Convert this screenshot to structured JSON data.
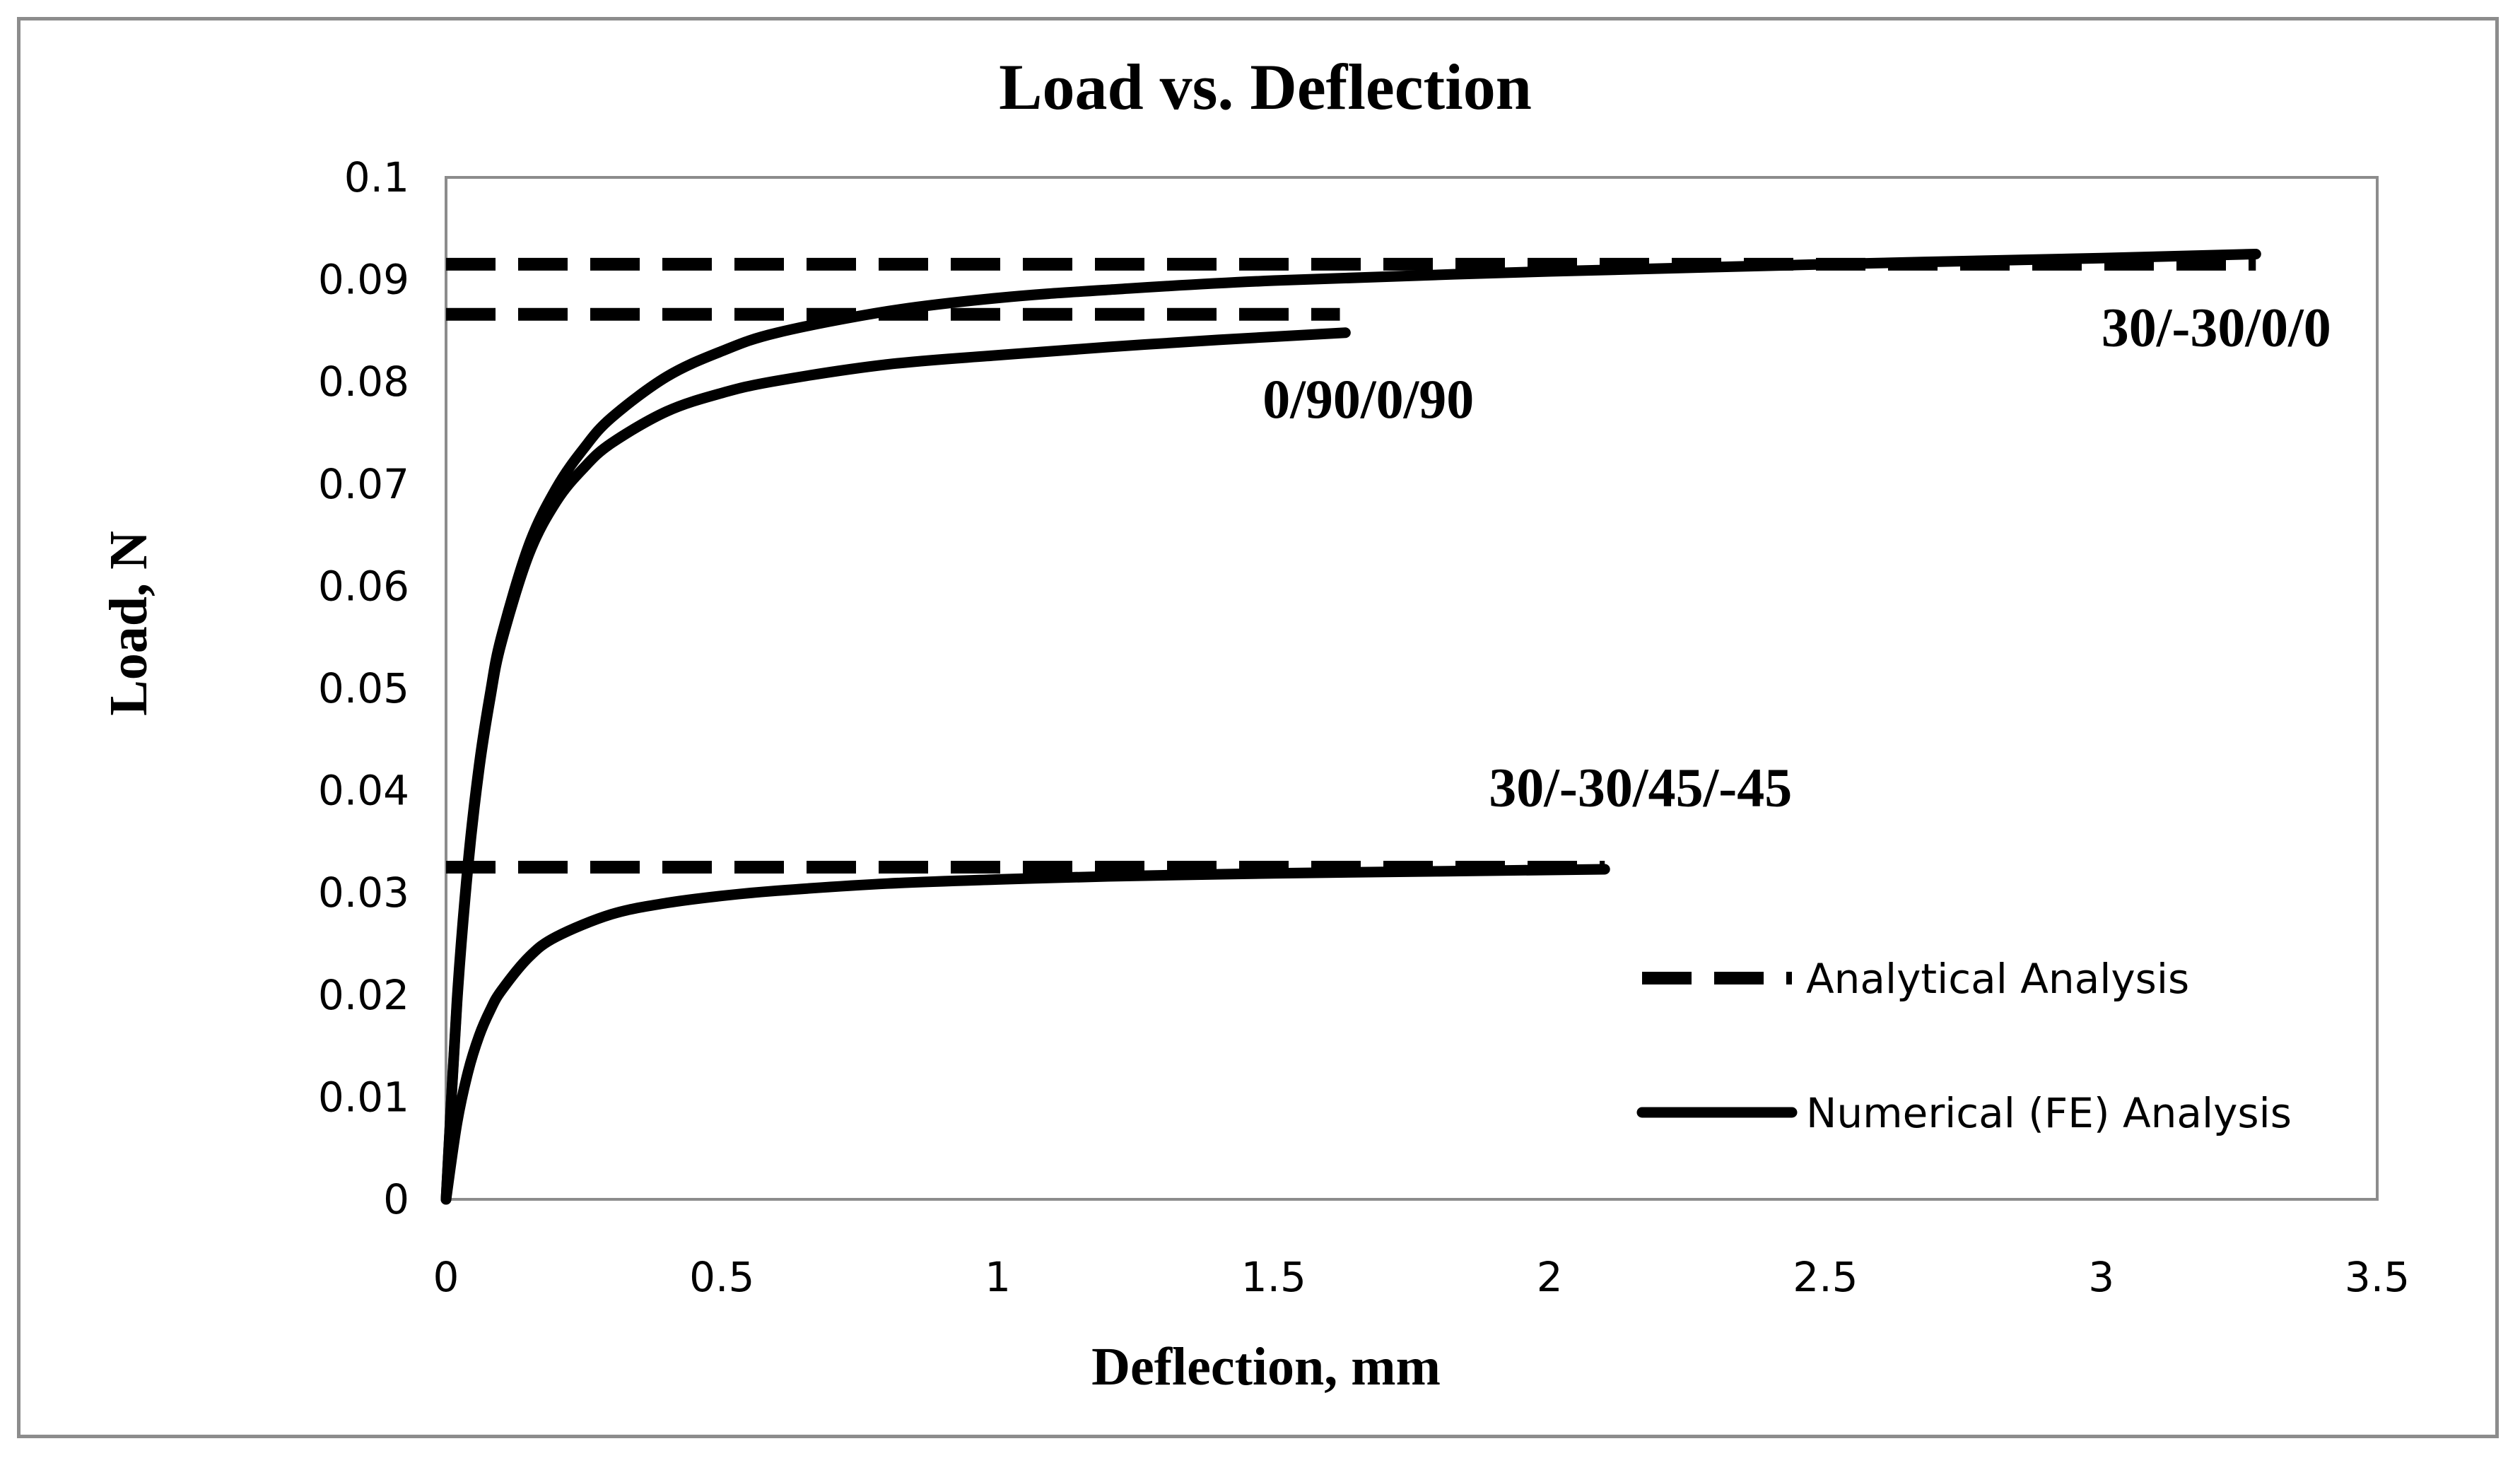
{
  "chart_data": {
    "type": "line",
    "title": "Load vs. Deflection",
    "xlabel": "Deflection, mm",
    "ylabel": "Load, N",
    "xlim": [
      0,
      3.5
    ],
    "ylim": [
      0,
      0.1
    ],
    "x_ticks": [
      "0",
      "0.5",
      "1",
      "1.5",
      "2",
      "2.5",
      "3",
      "3.5"
    ],
    "y_ticks": [
      "0",
      "0.01",
      "0.02",
      "0.03",
      "0.04",
      "0.05",
      "0.06",
      "0.07",
      "0.08",
      "0.09",
      "0.1"
    ],
    "grid": false,
    "legend_position": "bottom-right",
    "legend": [
      {
        "name": "Analytical Analysis",
        "style": "dashed"
      },
      {
        "name": "Numerical (FE) Analysis",
        "style": "solid"
      }
    ],
    "series": [
      {
        "name": "30/-30/0/0 Analytical",
        "style": "dashed",
        "x": [
          0,
          3.28
        ],
        "y": [
          0.0915,
          0.0915
        ]
      },
      {
        "name": "0/90/0/90 Analytical",
        "style": "dashed",
        "x": [
          0,
          1.62
        ],
        "y": [
          0.0866,
          0.0866
        ]
      },
      {
        "name": "30/-30/45/-45 Analytical",
        "style": "dashed",
        "x": [
          0,
          2.1
        ],
        "y": [
          0.0325,
          0.0325
        ]
      },
      {
        "name": "30/-30/0/0 Numerical",
        "style": "solid",
        "x": [
          0,
          0.02,
          0.04,
          0.06,
          0.08,
          0.1,
          0.15,
          0.2,
          0.25,
          0.3,
          0.4,
          0.5,
          0.6,
          0.8,
          1.0,
          1.2,
          1.5,
          2.0,
          2.5,
          3.0,
          3.28
        ],
        "y": [
          0,
          0.0196,
          0.033,
          0.0425,
          0.0495,
          0.055,
          0.064,
          0.0696,
          0.0735,
          0.0765,
          0.0805,
          0.083,
          0.0848,
          0.0869,
          0.0882,
          0.089,
          0.0899,
          0.0908,
          0.0915,
          0.0921,
          0.0925
        ]
      },
      {
        "name": "0/90/0/90 Numerical",
        "style": "solid",
        "x": [
          0,
          0.02,
          0.04,
          0.06,
          0.08,
          0.1,
          0.15,
          0.2,
          0.25,
          0.3,
          0.4,
          0.5,
          0.6,
          0.8,
          1.0,
          1.2,
          1.4,
          1.63
        ],
        "y": [
          0,
          0.0193,
          0.0326,
          0.0421,
          0.049,
          0.0544,
          0.0631,
          0.0683,
          0.0716,
          0.074,
          0.0771,
          0.0789,
          0.0801,
          0.0817,
          0.0826,
          0.0834,
          0.0841,
          0.0848
        ]
      },
      {
        "name": "30/-30/45/-45 Numerical",
        "style": "solid",
        "x": [
          0,
          0.02,
          0.04,
          0.06,
          0.08,
          0.1,
          0.15,
          0.2,
          0.3,
          0.4,
          0.5,
          0.6,
          0.8,
          1.0,
          1.2,
          1.5,
          1.8,
          2.1
        ],
        "y": [
          0,
          0.0075,
          0.0125,
          0.016,
          0.0185,
          0.0204,
          0.0237,
          0.0257,
          0.0279,
          0.029,
          0.0297,
          0.0302,
          0.0309,
          0.0313,
          0.0316,
          0.0319,
          0.0321,
          0.0323
        ]
      }
    ],
    "annotations": [
      {
        "text": "30/-30/0/0",
        "x": 3.0,
        "y": 0.0835
      },
      {
        "text": "0/90/0/90",
        "x": 1.48,
        "y": 0.0765
      },
      {
        "text": "30/-30/45/-45",
        "x": 1.89,
        "y": 0.0385
      }
    ],
    "colors": {
      "line": "#000000",
      "frame": "#8c8c8c",
      "background": "#ffffff"
    }
  }
}
